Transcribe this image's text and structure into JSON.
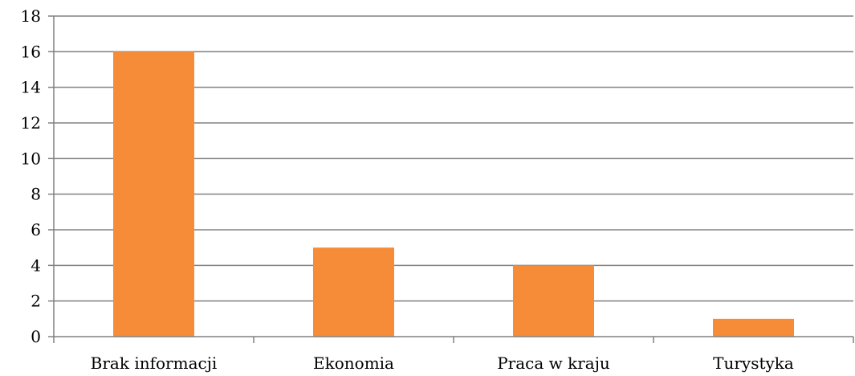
{
  "chart_data": {
    "type": "bar",
    "categories": [
      "Brak informacji",
      "Ekonomia",
      "Praca w kraju",
      "Turystyka"
    ],
    "values": [
      16,
      5,
      4,
      1
    ],
    "title": "",
    "xlabel": "",
    "ylabel": "",
    "ylim": [
      0,
      18
    ],
    "yticks": [
      0,
      2,
      4,
      6,
      8,
      10,
      12,
      14,
      16,
      18
    ],
    "grid": true,
    "legend": "none",
    "bar_color": "#F78C38",
    "grid_color": "#808080"
  }
}
